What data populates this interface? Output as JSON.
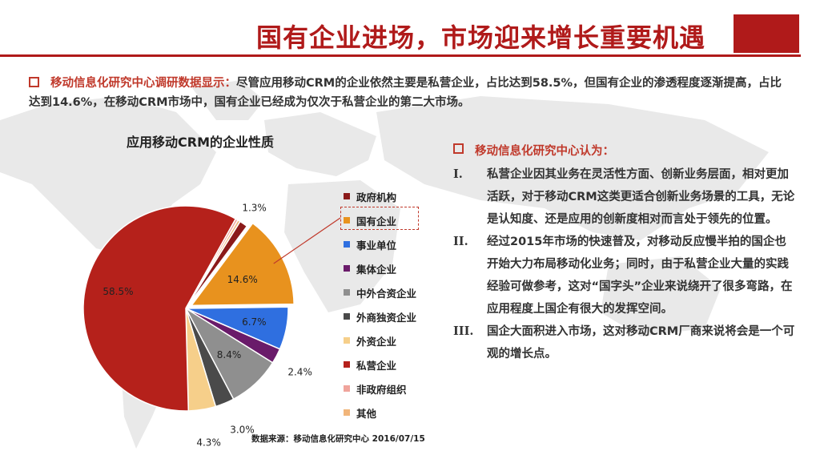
{
  "slide": {
    "title": "国有企业进场，市场迎来增长重要机遇",
    "accent_color": "#b01a1a"
  },
  "intro": {
    "label": "移动信息化研究中心调研数据显示：",
    "text": "尽管应用移动CRM的企业依然主要是私营企业，占比达到58.5%，但国有企业的渗透程度逐渐提高，占比达到14.6%，在移动CRM市场中，国有企业已经成为仅次于私营企业的第二大市场。"
  },
  "chart_data": {
    "type": "pie",
    "title": "应用移动CRM的企业性质",
    "categories": [
      "政府机构",
      "国有企业",
      "事业单位",
      "集体企业",
      "中外合资企业",
      "外商独资企业",
      "外资企业",
      "私营企业",
      "非政府组织",
      "其他"
    ],
    "values": [
      1.3,
      14.6,
      6.7,
      2.4,
      8.4,
      3.0,
      4.3,
      58.5,
      0.4,
      0.4
    ],
    "data_labels": [
      "1.3%",
      "14.6%",
      "6.7%",
      "2.4%",
      "8.4%",
      "3.0%",
      "4.3%",
      "58.5%",
      "",
      ""
    ],
    "colors": [
      "#8b1a1a",
      "#e8921e",
      "#2f6fe0",
      "#6a1b6a",
      "#8f8f8f",
      "#4a4a4a",
      "#f6cf8a",
      "#b5211b",
      "#f0a49c",
      "#f1b57a"
    ],
    "highlighted": "国有企业",
    "legend_position": "right"
  },
  "source": "数据来源：移动信息化研究中心 2016/07/15",
  "right": {
    "heading": "移动信息化研究中心认为：",
    "points": [
      {
        "num": "I.",
        "text": "私营企业因其业务在灵活性方面、创新业务层面，相对更加活跃，对于移动CRM这类更适合创新业务场景的工具，无论是认知度、还是应用的创新度相对而言处于领先的位置。"
      },
      {
        "num": "II.",
        "text": "经过2015年市场的快速普及，对移动反应慢半拍的国企也开始大力布局移动化业务；同时，由于私营企业大量的实践经验可做参考，这对“国字头”企业来说绕开了很多弯路，在应用程度上国企有很大的发挥空间。"
      },
      {
        "num": "III.",
        "text": "国企大面积进入市场，这对移动CRM厂商来说将会是一个可观的增长点。"
      }
    ]
  }
}
